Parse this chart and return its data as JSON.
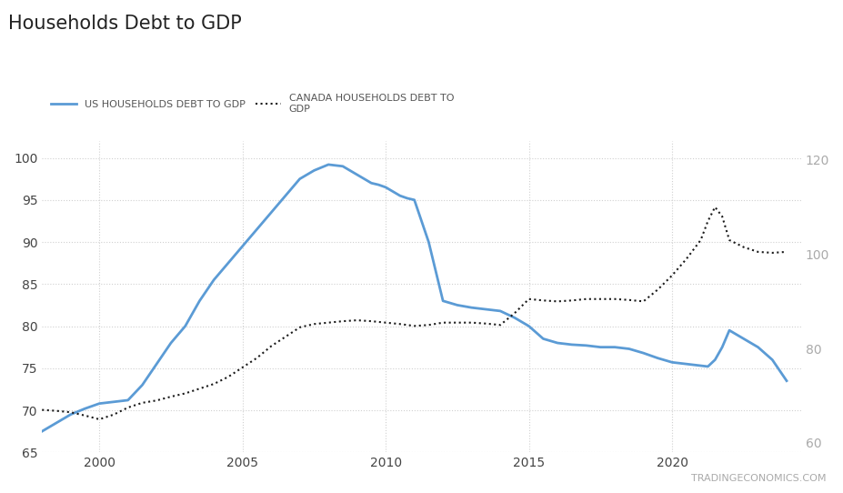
{
  "title": "Households Debt to GDP",
  "watermark": "TRADINGECONOMICS.COM",
  "background_color": "#ffffff",
  "plot_background_color": "#ffffff",
  "grid_color": "#d0d0d0",
  "us_color": "#5b9bd5",
  "canada_color": "#1a1a1a",
  "us_label": "US HOUSEHOLDS DEBT TO GDP",
  "canada_label": "CANADA HOUSEHOLDS DEBT TO\nGDP",
  "ylim_left": [
    65,
    102
  ],
  "ylim_right": [
    58,
    124
  ],
  "us_data": {
    "years": [
      1998,
      1999,
      2000,
      2001,
      2002,
      2003,
      2004,
      2005,
      2006,
      2007,
      2008,
      2009,
      2010,
      2011,
      2012,
      2013,
      2014,
      2015,
      2016,
      2017,
      2018,
      2019,
      2020,
      2021,
      2022,
      2023,
      2024
    ],
    "values": [
      67.5,
      69.5,
      70.8,
      71.2,
      75.5,
      80.0,
      85.5,
      89.5,
      93.5,
      97.5,
      99.2,
      98.0,
      96.8,
      95.0,
      83.0,
      82.2,
      81.5,
      78.0,
      77.5,
      77.5,
      77.5,
      76.5,
      75.5,
      75.3,
      79.5,
      76.5,
      73.5
    ]
  },
  "canada_data": {
    "years": [
      1998,
      1999,
      2000,
      2001,
      2002,
      2003,
      2004,
      2005,
      2006,
      2007,
      2008,
      2009,
      2010,
      2011,
      2012,
      2013,
      2014,
      2015,
      2016,
      2017,
      2018,
      2019,
      2020,
      2021,
      2022,
      2023,
      2024
    ],
    "values": [
      67.0,
      66.5,
      65.0,
      67.5,
      69.0,
      70.5,
      72.5,
      76.0,
      80.5,
      84.5,
      85.5,
      86.0,
      85.2,
      84.8,
      85.5,
      85.5,
      85.0,
      90.5,
      90.0,
      90.5,
      90.5,
      90.0,
      95.5,
      107.0,
      103.0,
      100.5,
      100.5
    ]
  }
}
